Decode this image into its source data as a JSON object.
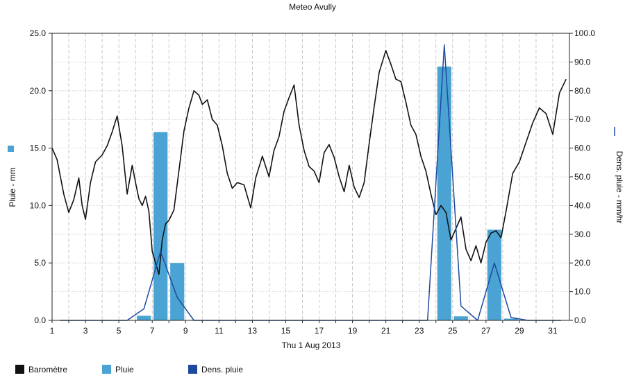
{
  "chart_data": {
    "type": "combo",
    "title": "Meteo  Avully",
    "xlabel": "Thu 1 Aug 2013",
    "x_ticks": [
      "1",
      "3",
      "5",
      "7",
      "9",
      "11",
      "13",
      "15",
      "17",
      "19",
      "21",
      "23",
      "25",
      "27",
      "29",
      "31"
    ],
    "xlim": [
      1,
      32
    ],
    "y_left": {
      "label": "Pluie - mm",
      "lim": [
        0,
        25
      ],
      "ticks": [
        "0.0",
        "5.0",
        "10.0",
        "15.0",
        "20.0",
        "25.0"
      ]
    },
    "y_right": {
      "label": "Dens. pluie - mm/hr",
      "lim": [
        0,
        100
      ],
      "ticks": [
        "0.0",
        "10.0",
        "20.0",
        "30.0",
        "40.0",
        "50.0",
        "60.0",
        "70.0",
        "80.0",
        "90.0",
        "100.0"
      ]
    },
    "grid": true,
    "legend_position": "bottom-left",
    "series": [
      {
        "name": "Baromètre",
        "kind": "line",
        "axis": "left",
        "color": "#111111",
        "x": [
          1.0,
          1.3,
          1.7,
          2.0,
          2.3,
          2.6,
          2.8,
          3.0,
          3.3,
          3.6,
          4.0,
          4.3,
          4.6,
          4.9,
          5.2,
          5.5,
          5.8,
          6.0,
          6.2,
          6.4,
          6.6,
          6.8,
          7.0,
          7.2,
          7.4,
          7.6,
          7.8,
          8.0,
          8.3,
          8.6,
          8.9,
          9.2,
          9.5,
          9.8,
          10.0,
          10.3,
          10.6,
          10.9,
          11.2,
          11.5,
          11.8,
          12.1,
          12.5,
          12.9,
          13.2,
          13.6,
          14.0,
          14.3,
          14.6,
          14.9,
          15.2,
          15.5,
          15.8,
          16.1,
          16.4,
          16.7,
          17.0,
          17.3,
          17.6,
          17.9,
          18.2,
          18.5,
          18.8,
          19.1,
          19.4,
          19.7,
          20.0,
          20.3,
          20.6,
          21.0,
          21.3,
          21.6,
          21.9,
          22.2,
          22.5,
          22.8,
          23.1,
          23.4,
          23.7,
          24.0,
          24.3,
          24.6,
          24.9,
          25.2,
          25.5,
          25.8,
          26.1,
          26.4,
          26.7,
          27.0,
          27.3,
          27.6,
          27.9,
          28.2,
          28.6,
          29.0,
          29.4,
          29.8,
          30.2,
          30.6,
          31.0,
          31.4,
          31.8
        ],
        "y": [
          15.0,
          14.0,
          11.0,
          9.4,
          10.5,
          12.4,
          10.0,
          8.8,
          12.0,
          13.8,
          14.4,
          15.2,
          16.4,
          17.8,
          15.2,
          11.0,
          13.5,
          12.0,
          10.6,
          10.0,
          10.8,
          9.5,
          6.0,
          5.0,
          4.0,
          7.0,
          8.4,
          8.7,
          9.6,
          13.0,
          16.5,
          18.5,
          20.0,
          19.6,
          18.8,
          19.2,
          17.5,
          17.0,
          15.2,
          12.8,
          11.5,
          12.0,
          11.8,
          9.8,
          12.4,
          14.3,
          12.5,
          14.8,
          16.0,
          18.2,
          19.4,
          20.5,
          17.0,
          14.8,
          13.4,
          13.0,
          12.0,
          14.6,
          15.3,
          14.2,
          12.5,
          11.2,
          13.5,
          11.6,
          10.7,
          12.0,
          15.4,
          18.6,
          21.6,
          23.5,
          22.3,
          21.0,
          20.8,
          19.0,
          17.0,
          16.2,
          14.3,
          13.0,
          11.0,
          9.2,
          10.0,
          9.4,
          7.0,
          8.0,
          9.0,
          6.2,
          5.2,
          6.5,
          5.0,
          6.8,
          7.6,
          7.8,
          7.2,
          9.5,
          12.8,
          13.8,
          15.5,
          17.2,
          18.5,
          18.0,
          16.2,
          19.8,
          21.0
        ]
      },
      {
        "name": "Pluie",
        "kind": "bar",
        "axis": "left",
        "color": "#4aa3d2",
        "x": [
          6.5,
          7.5,
          8.5,
          24.5,
          25.5,
          27.5,
          28.5
        ],
        "values": [
          0.4,
          16.4,
          5.0,
          22.1,
          0.35,
          7.9,
          0.15
        ]
      },
      {
        "name": "Dens. pluie",
        "kind": "line",
        "axis": "right",
        "color": "#1d4aa0",
        "x": [
          1.5,
          5.5,
          6.5,
          7.5,
          8.5,
          9.5,
          10.5,
          23.5,
          24.5,
          25.5,
          26.5,
          27.5,
          28.5,
          29.5,
          31.5
        ],
        "y": [
          0,
          0,
          4,
          24,
          8,
          0,
          0,
          0,
          96,
          5,
          0,
          20,
          1,
          0,
          0
        ]
      }
    ]
  }
}
